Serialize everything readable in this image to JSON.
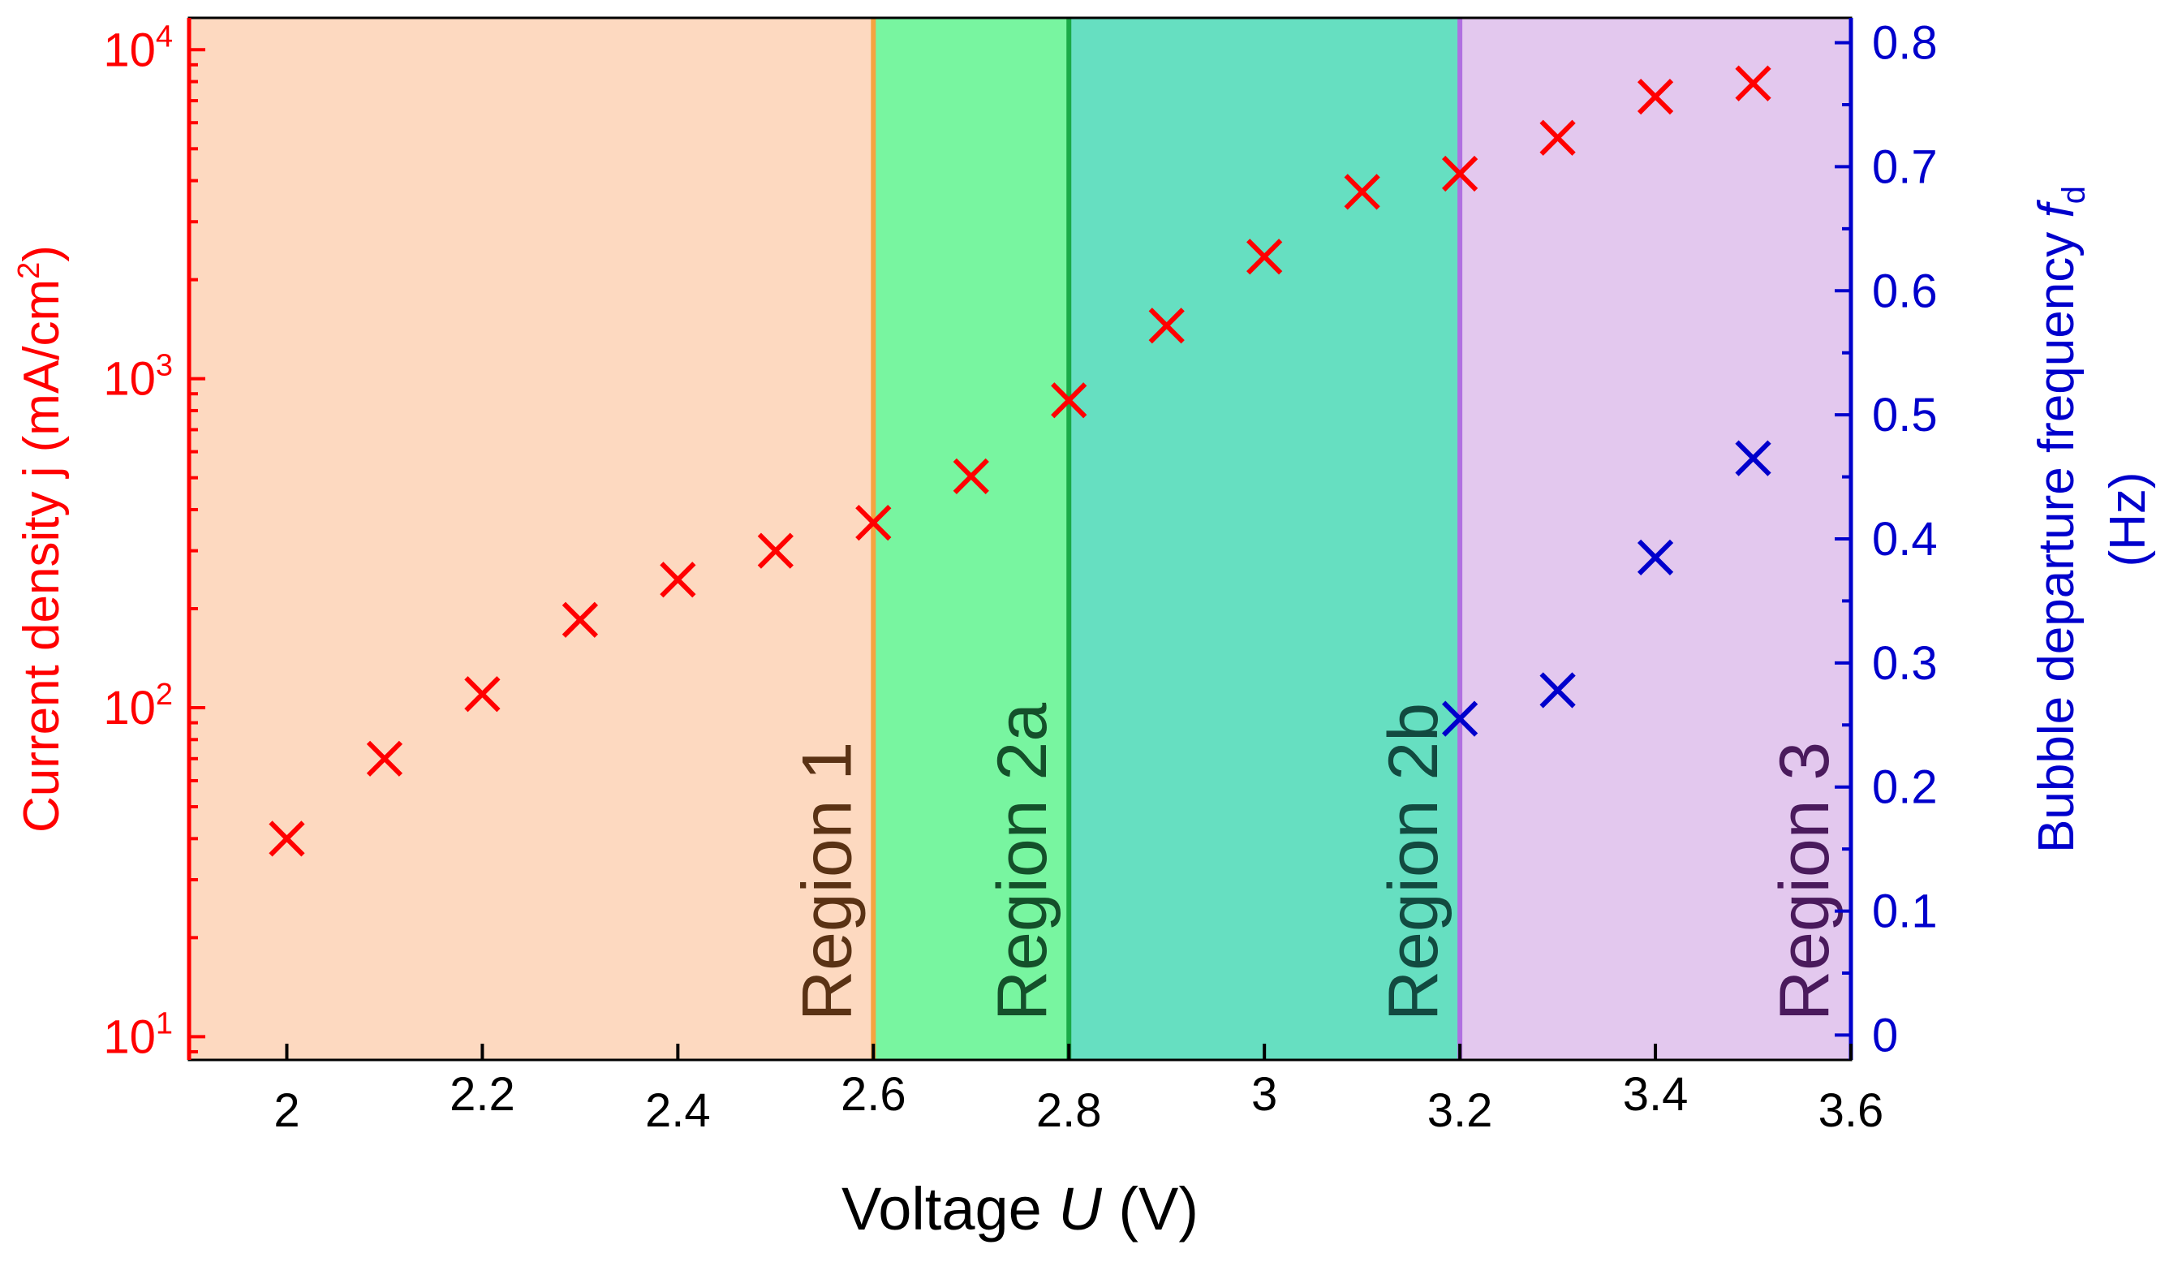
{
  "chart_data": {
    "type": "scatter",
    "xlabel": {
      "prefix": "Voltage ",
      "var": "U",
      "suffix": " (V)"
    },
    "xlim": [
      1.9,
      3.6
    ],
    "xticks": [
      {
        "value": 2.0,
        "label": "2"
      },
      {
        "value": 2.2,
        "label": "2.2"
      },
      {
        "value": 2.4,
        "label": "2.4"
      },
      {
        "value": 2.6,
        "label": "2.6"
      },
      {
        "value": 2.8,
        "label": "2.8"
      },
      {
        "value": 3.0,
        "label": "3"
      },
      {
        "value": 3.2,
        "label": "3.2"
      },
      {
        "value": 3.4,
        "label": "3.4"
      },
      {
        "value": 3.6,
        "label": "3.6"
      }
    ],
    "y_left": {
      "label": {
        "main": "Current density j (mA/cm",
        "sup": "2",
        "close": ")"
      },
      "scale": "log",
      "ylim": [
        8.5,
        12500
      ],
      "ticks": [
        {
          "value": 10,
          "base": "10",
          "exp": "1"
        },
        {
          "value": 100,
          "base": "10",
          "exp": "2"
        },
        {
          "value": 1000,
          "base": "10",
          "exp": "3"
        },
        {
          "value": 10000,
          "base": "10",
          "exp": "4"
        }
      ],
      "color": "#ff0000"
    },
    "y_right": {
      "label_line1": {
        "text": "Bubble departure frequency ",
        "var": "f",
        "sub": "d"
      },
      "label_line2": "(Hz)",
      "scale": "linear",
      "ylim": [
        -0.02,
        0.82
      ],
      "ticks": [
        {
          "value": 0.0,
          "label": "0"
        },
        {
          "value": 0.1,
          "label": "0.1"
        },
        {
          "value": 0.2,
          "label": "0.2"
        },
        {
          "value": 0.3,
          "label": "0.3"
        },
        {
          "value": 0.4,
          "label": "0.4"
        },
        {
          "value": 0.5,
          "label": "0.5"
        },
        {
          "value": 0.6,
          "label": "0.6"
        },
        {
          "value": 0.7,
          "label": "0.7"
        },
        {
          "value": 0.8,
          "label": "0.8"
        }
      ],
      "color": "#0000cc"
    },
    "regions": [
      {
        "name": "Region 1",
        "x0": 1.9,
        "x1": 2.6,
        "fill": "#fdd9c0",
        "text_color": "#5a3214"
      },
      {
        "name": "Region 2a",
        "x0": 2.6,
        "x1": 2.8,
        "fill": "#78f5a0",
        "text_color": "#14502a"
      },
      {
        "name": "Region 2b",
        "x0": 2.8,
        "x1": 3.2,
        "fill": "#66dfc1",
        "text_color": "#124a40"
      },
      {
        "name": "Region 3",
        "x0": 3.2,
        "x1": 3.6,
        "fill": "#e3c8ee",
        "text_color": "#4a1a5c"
      }
    ],
    "boundaries": [
      {
        "x": 2.6,
        "color": "#f5a340"
      },
      {
        "x": 2.8,
        "color": "#1aaa48"
      },
      {
        "x": 3.2,
        "color": "#b070e0"
      }
    ],
    "series": [
      {
        "name": "Current density j",
        "axis": "left",
        "marker": "x",
        "color": "#ff0000",
        "x": [
          2.0,
          2.1,
          2.2,
          2.3,
          2.4,
          2.5,
          2.6,
          2.7,
          2.8,
          2.9,
          3.0,
          3.1,
          3.2,
          3.3,
          3.4,
          3.5
        ],
        "y": [
          40,
          70,
          110,
          185,
          245,
          300,
          365,
          505,
          860,
          1450,
          2350,
          3700,
          4200,
          5400,
          7200,
          7900
        ]
      },
      {
        "name": "Bubble departure frequency fd",
        "axis": "right",
        "marker": "x",
        "color": "#0000cc",
        "x": [
          3.2,
          3.3,
          3.4,
          3.5
        ],
        "y": [
          0.255,
          0.278,
          0.385,
          0.465
        ]
      }
    ]
  }
}
